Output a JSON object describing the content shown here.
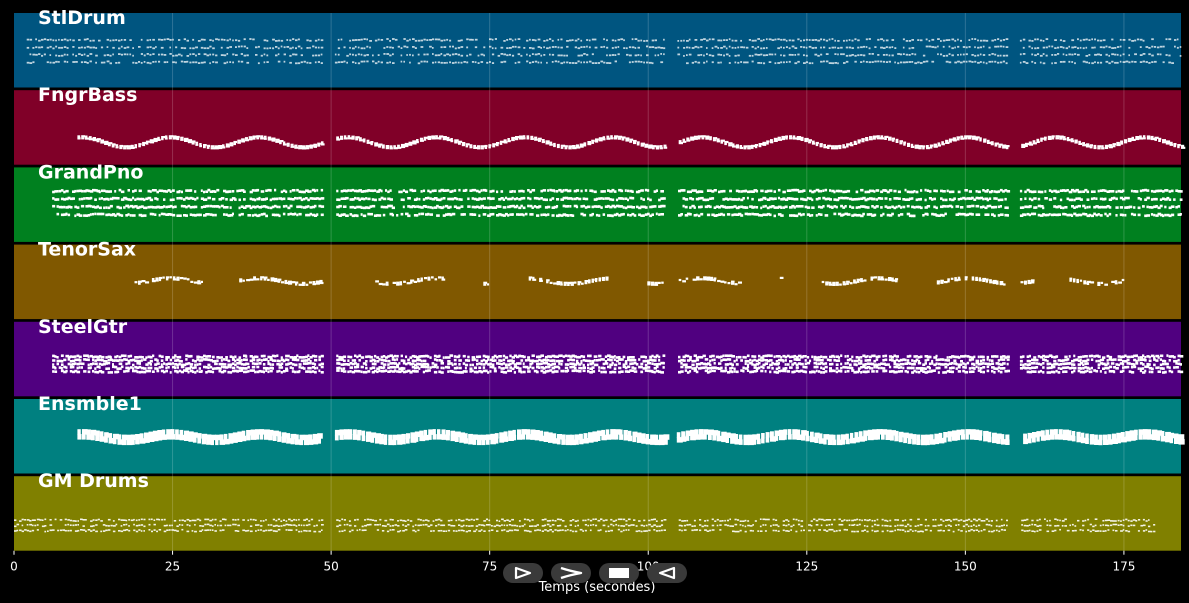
{
  "colors": {
    "background": "#000000",
    "grid": "#ffffff",
    "notes": "#ffffff"
  },
  "chart_data": {
    "type": "piano-roll",
    "xlabel": "Temps (secondes)",
    "xlim": [
      0,
      184
    ],
    "x_ticks": [
      0,
      25,
      50,
      75,
      100,
      125,
      150,
      175
    ],
    "grid": true,
    "gaps": [
      [
        48.5,
        50.5
      ],
      [
        102.5,
        104.5
      ],
      [
        156.5,
        158.5
      ]
    ],
    "tracks": [
      {
        "name": "StlDrum",
        "color": "#005580",
        "start": 2,
        "end": 184,
        "lane": [
          0.35,
          0.65
        ],
        "style": "dense-light",
        "rows": 4
      },
      {
        "name": "FngrBass",
        "color": "#800028",
        "start": 10,
        "end": 184,
        "lane": [
          0.55,
          0.82
        ],
        "style": "line",
        "rows": 2
      },
      {
        "name": "GrandPno",
        "color": "#00801f",
        "start": 6,
        "end": 184,
        "lane": [
          0.3,
          0.62
        ],
        "style": "dense",
        "rows": 4
      },
      {
        "name": "TenorSax",
        "color": "#805800",
        "start": 19,
        "end": 175,
        "lane": [
          0.4,
          0.55
        ],
        "style": "phrases",
        "rows": 2,
        "silences": [
          [
            68,
            73.5
          ],
          [
            121,
            127
          ]
        ]
      },
      {
        "name": "SteelGtr",
        "color": "#500080",
        "start": 6,
        "end": 184,
        "lane": [
          0.45,
          0.65
        ],
        "style": "dense",
        "rows": 5
      },
      {
        "name": "Ensmble1",
        "color": "#008080",
        "start": 10,
        "end": 184,
        "lane": [
          0.4,
          0.55
        ],
        "style": "thick",
        "rows": 2
      },
      {
        "name": "GM Drums",
        "color": "#808000",
        "start": 0,
        "end": 180,
        "lane": [
          0.58,
          0.72
        ],
        "style": "dense-thin",
        "rows": 3
      }
    ]
  },
  "transport": {
    "play_symbol": "⊳",
    "forward_symbol": "≻",
    "stop_symbol": "▬",
    "back_symbol": "⊲"
  }
}
